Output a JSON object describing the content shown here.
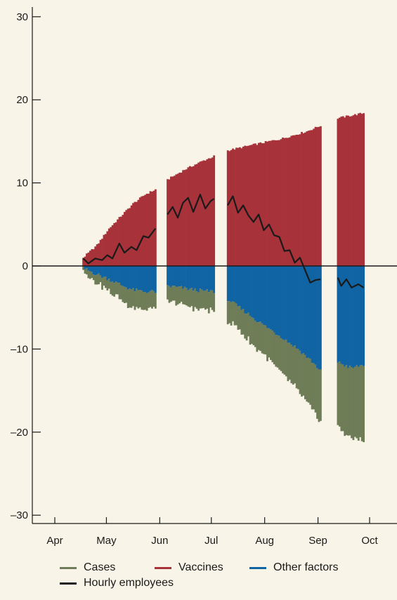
{
  "chart_data": {
    "type": "bar",
    "title": "",
    "xlabel": "",
    "ylabel": "",
    "ylim": [
      -31,
      31
    ],
    "yticks": [
      30,
      20,
      10,
      0,
      -10,
      -20,
      -30
    ],
    "ytick_labels": [
      "30",
      "20",
      "10",
      "0",
      "–10",
      "–20",
      "–30"
    ],
    "xticks": [
      {
        "label": "Apr",
        "day": 0
      },
      {
        "label": "May",
        "day": 30
      },
      {
        "label": "Jun",
        "day": 61
      },
      {
        "label": "Jul",
        "day": 91
      },
      {
        "label": "Aug",
        "day": 122
      },
      {
        "label": "Sep",
        "day": 153
      },
      {
        "label": "Oct",
        "day": 183
      }
    ],
    "date_segments": [
      {
        "start": "2021-04-17",
        "end": "2021-05-29"
      },
      {
        "start": "2021-06-05",
        "end": "2021-07-02"
      },
      {
        "start": "2021-07-10",
        "end": "2021-09-02"
      },
      {
        "start": "2021-09-12",
        "end": "2021-09-27"
      }
    ],
    "series": [
      {
        "name": "Vaccines",
        "color": "#a8323a",
        "knots": [
          [
            "2021-04-17",
            1.0
          ],
          [
            "2021-04-25",
            2.5
          ],
          [
            "2021-05-02",
            4.5
          ],
          [
            "2021-05-09",
            6.0
          ],
          [
            "2021-05-16",
            7.5
          ],
          [
            "2021-05-23",
            8.6
          ],
          [
            "2021-05-29",
            9.2
          ],
          [
            "2021-06-05",
            10.4
          ],
          [
            "2021-06-15",
            11.6
          ],
          [
            "2021-06-25",
            12.6
          ],
          [
            "2021-07-02",
            13.2
          ],
          [
            "2021-07-10",
            13.9
          ],
          [
            "2021-07-25",
            14.6
          ],
          [
            "2021-08-10",
            15.3
          ],
          [
            "2021-08-25",
            16.2
          ],
          [
            "2021-09-02",
            16.9
          ],
          [
            "2021-09-12",
            17.8
          ],
          [
            "2021-09-27",
            18.4
          ]
        ]
      },
      {
        "name": "Other factors",
        "color": "#1164a3",
        "knots": [
          [
            "2021-04-17",
            -0.3
          ],
          [
            "2021-04-25",
            -1.0
          ],
          [
            "2021-05-02",
            -1.6
          ],
          [
            "2021-05-09",
            -2.3
          ],
          [
            "2021-05-16",
            -2.9
          ],
          [
            "2021-05-23",
            -3.1
          ],
          [
            "2021-05-29",
            -3.1
          ],
          [
            "2021-06-05",
            -2.4
          ],
          [
            "2021-06-15",
            -2.7
          ],
          [
            "2021-06-25",
            -3.0
          ],
          [
            "2021-07-02",
            -3.1
          ],
          [
            "2021-07-10",
            -4.0
          ],
          [
            "2021-07-20",
            -5.5
          ],
          [
            "2021-07-30",
            -7.0
          ],
          [
            "2021-08-10",
            -8.5
          ],
          [
            "2021-08-20",
            -10.0
          ],
          [
            "2021-08-28",
            -11.5
          ],
          [
            "2021-09-02",
            -12.6
          ],
          [
            "2021-09-12",
            -11.6
          ],
          [
            "2021-09-20",
            -12.3
          ],
          [
            "2021-09-27",
            -11.9
          ]
        ]
      },
      {
        "name": "Cases",
        "color": "#6e7d57",
        "knots": [
          [
            "2021-04-17",
            -0.4
          ],
          [
            "2021-04-25",
            -1.0
          ],
          [
            "2021-05-02",
            -1.4
          ],
          [
            "2021-05-09",
            -1.8
          ],
          [
            "2021-05-16",
            -2.1
          ],
          [
            "2021-05-23",
            -2.2
          ],
          [
            "2021-05-29",
            -1.9
          ],
          [
            "2021-06-05",
            -1.9
          ],
          [
            "2021-06-15",
            -2.1
          ],
          [
            "2021-06-25",
            -2.3
          ],
          [
            "2021-07-02",
            -2.3
          ],
          [
            "2021-07-10",
            -2.5
          ],
          [
            "2021-07-20",
            -3.0
          ],
          [
            "2021-07-30",
            -3.5
          ],
          [
            "2021-08-10",
            -4.2
          ],
          [
            "2021-08-20",
            -5.0
          ],
          [
            "2021-08-28",
            -5.8
          ],
          [
            "2021-09-02",
            -6.1
          ],
          [
            "2021-09-12",
            -7.8
          ],
          [
            "2021-09-20",
            -8.5
          ],
          [
            "2021-09-27",
            -9.0
          ]
        ]
      },
      {
        "name": "Hourly employees",
        "color": "#1a1a1a",
        "knots": [
          [
            "2021-04-17",
            0.9
          ],
          [
            "2021-04-20",
            0.3
          ],
          [
            "2021-04-24",
            0.9
          ],
          [
            "2021-04-28",
            0.7
          ],
          [
            "2021-05-01",
            1.3
          ],
          [
            "2021-05-04",
            0.9
          ],
          [
            "2021-05-08",
            2.7
          ],
          [
            "2021-05-11",
            1.6
          ],
          [
            "2021-05-15",
            2.3
          ],
          [
            "2021-05-18",
            1.9
          ],
          [
            "2021-05-22",
            3.6
          ],
          [
            "2021-05-25",
            3.4
          ],
          [
            "2021-05-29",
            4.5
          ],
          [
            "2021-06-05",
            6.2
          ],
          [
            "2021-06-08",
            7.1
          ],
          [
            "2021-06-11",
            5.8
          ],
          [
            "2021-06-14",
            7.6
          ],
          [
            "2021-06-17",
            8.2
          ],
          [
            "2021-06-20",
            6.5
          ],
          [
            "2021-06-24",
            8.6
          ],
          [
            "2021-06-27",
            6.9
          ],
          [
            "2021-06-30",
            7.8
          ],
          [
            "2021-07-02",
            8.1
          ],
          [
            "2021-07-10",
            7.3
          ],
          [
            "2021-07-13",
            8.4
          ],
          [
            "2021-07-16",
            6.4
          ],
          [
            "2021-07-19",
            7.3
          ],
          [
            "2021-07-22",
            6.1
          ],
          [
            "2021-07-25",
            5.3
          ],
          [
            "2021-07-28",
            6.2
          ],
          [
            "2021-07-31",
            4.3
          ],
          [
            "2021-08-03",
            5.0
          ],
          [
            "2021-08-06",
            3.7
          ],
          [
            "2021-08-09",
            3.5
          ],
          [
            "2021-08-12",
            1.8
          ],
          [
            "2021-08-15",
            1.9
          ],
          [
            "2021-08-18",
            0.4
          ],
          [
            "2021-08-21",
            1.0
          ],
          [
            "2021-08-24",
            -0.5
          ],
          [
            "2021-08-27",
            -2.0
          ],
          [
            "2021-08-30",
            -1.7
          ],
          [
            "2021-09-02",
            -1.6
          ],
          [
            "2021-09-12",
            -1.4
          ],
          [
            "2021-09-14",
            -2.4
          ],
          [
            "2021-09-17",
            -1.6
          ],
          [
            "2021-09-20",
            -2.6
          ],
          [
            "2021-09-24",
            -2.2
          ],
          [
            "2021-09-27",
            -2.6
          ]
        ]
      }
    ],
    "legend_position": "bottom"
  },
  "legend": {
    "cases": "Cases",
    "vaccines": "Vaccines",
    "other": "Other factors",
    "hourly": "Hourly employees",
    "cases_color": "#6e7d57",
    "vaccines_color": "#a8323a",
    "other_color": "#1164a3",
    "hourly_color": "#1a1a1a"
  }
}
